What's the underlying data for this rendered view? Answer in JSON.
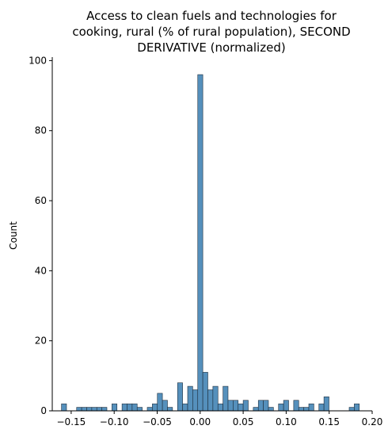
{
  "chart_data": {
    "type": "bar",
    "title_lines": [
      "Access to clean fuels and technologies for",
      "cooking, rural (% of rural population), SECOND",
      "DERIVATIVE (normalized)"
    ],
    "xlabel": "",
    "ylabel": "Count",
    "xlim": [
      -0.172,
      0.2
    ],
    "ylim": [
      0,
      101
    ],
    "x_ticks": [
      -0.15,
      -0.1,
      -0.05,
      0.0,
      0.05,
      0.1,
      0.15,
      0.2
    ],
    "x_tick_labels": [
      "−0.15",
      "−0.10",
      "−0.05",
      "0.00",
      "0.05",
      "0.10",
      "0.15",
      "0.20"
    ],
    "y_ticks": [
      0,
      20,
      40,
      60,
      80,
      100
    ],
    "y_tick_labels": [
      "0",
      "20",
      "40",
      "60",
      "80",
      "100"
    ],
    "bin_start": -0.1613,
    "bin_width": 0.00587,
    "counts": [
      2,
      0,
      0,
      1,
      1,
      1,
      1,
      1,
      1,
      0,
      2,
      0,
      2,
      2,
      2,
      1,
      0,
      1,
      2,
      5,
      3,
      1,
      0,
      8,
      2,
      7,
      6,
      96,
      11,
      6,
      7,
      2,
      7,
      3,
      3,
      2,
      3,
      0,
      1,
      3,
      3,
      1,
      0,
      2,
      3,
      0,
      3,
      1,
      1,
      2,
      0,
      2,
      4,
      0,
      0,
      0,
      0,
      1,
      2
    ],
    "grid": false,
    "color": "#4c8ab8",
    "edge_color": "#1f2f3d"
  }
}
